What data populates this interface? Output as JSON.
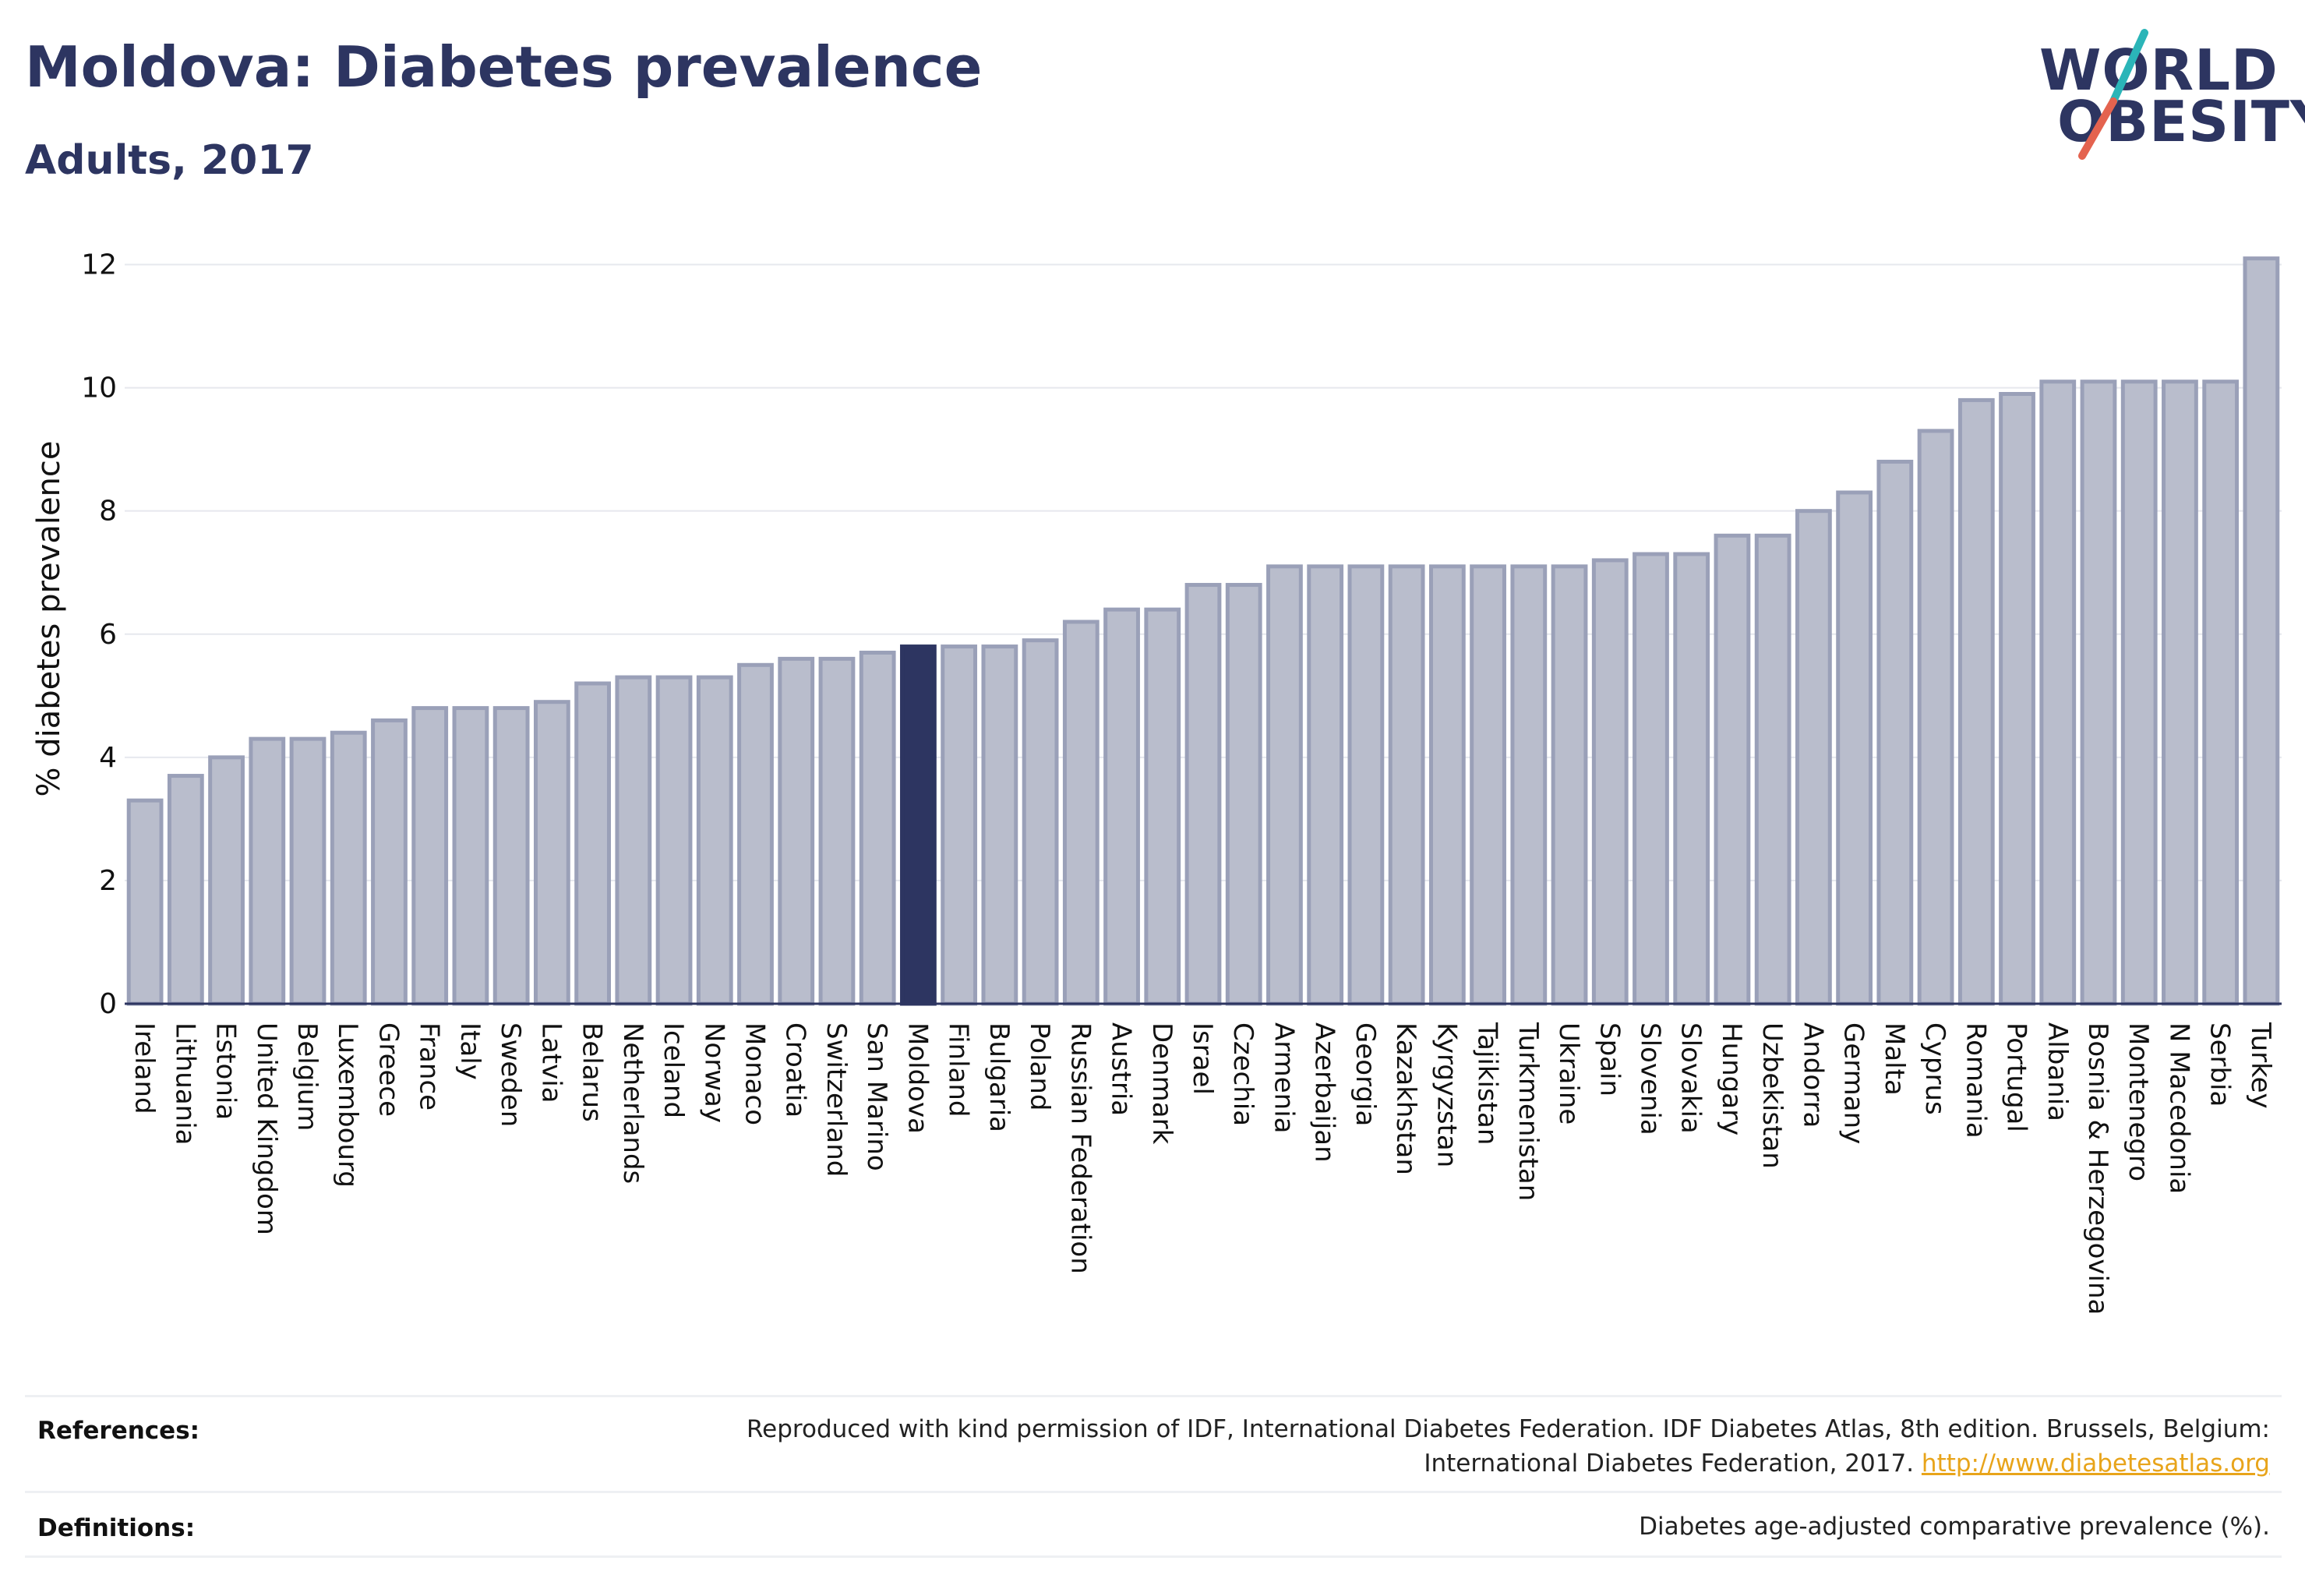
{
  "header": {
    "title": "Moldova: Diabetes prevalence",
    "subtitle": "Adults, 2017"
  },
  "logo": {
    "line1": "WORLD",
    "line2": "OBESITY",
    "colors": {
      "text": "#2d3561",
      "slash_top": "#2bb5b8",
      "slash_bottom": "#e4634f"
    }
  },
  "footer": {
    "references_label": "References:",
    "references_text_1": "Reproduced with kind permission of IDF, International Diabetes Federation. IDF Diabetes Atlas, 8th edition. Brussels, Belgium:",
    "references_text_2": "International Diabetes Federation, 2017.",
    "references_link": "http://www.diabetesatlas.org",
    "definitions_label": "Definitions:",
    "definitions_text": "Diabetes age-adjusted comparative prevalence (%)."
  },
  "chart_data": {
    "type": "bar",
    "ylabel": "% diabetes prevalence",
    "ylim": [
      0,
      12.5
    ],
    "yticks": [
      0,
      2,
      4,
      6,
      8,
      10,
      12
    ],
    "grid": true,
    "highlight": "Moldova",
    "colors": {
      "bar": "#b9bdcc",
      "bar_border": "#9aa0b8",
      "highlight": "#2d3561",
      "grid": "#e6e8ee"
    },
    "categories": [
      "Ireland",
      "Lithuania",
      "Estonia",
      "United Kingdom",
      "Belgium",
      "Luxembourg",
      "Greece",
      "France",
      "Italy",
      "Sweden",
      "Latvia",
      "Belarus",
      "Netherlands",
      "Iceland",
      "Norway",
      "Monaco",
      "Croatia",
      "Switzerland",
      "San Marino",
      "Moldova",
      "Finland",
      "Bulgaria",
      "Poland",
      "Russian Federation",
      "Austria",
      "Denmark",
      "Israel",
      "Czechia",
      "Armenia",
      "Azerbaijan",
      "Georgia",
      "Kazakhstan",
      "Kyrgyzstan",
      "Tajikistan",
      "Turkmenistan",
      "Ukraine",
      "Spain",
      "Slovenia",
      "Slovakia",
      "Hungary",
      "Uzbekistan",
      "Andorra",
      "Germany",
      "Malta",
      "Cyprus",
      "Romania",
      "Portugal",
      "Albania",
      "Bosnia & Herzegovina",
      "Montenegro",
      "N Macedonia",
      "Serbia",
      "Turkey"
    ],
    "values": [
      3.3,
      3.7,
      4.0,
      4.3,
      4.3,
      4.4,
      4.6,
      4.8,
      4.8,
      4.8,
      4.9,
      5.2,
      5.3,
      5.3,
      5.3,
      5.5,
      5.6,
      5.6,
      5.7,
      5.8,
      5.8,
      5.8,
      5.9,
      6.2,
      6.4,
      6.4,
      6.8,
      6.8,
      7.1,
      7.1,
      7.1,
      7.1,
      7.1,
      7.1,
      7.1,
      7.1,
      7.2,
      7.3,
      7.3,
      7.6,
      7.6,
      8.0,
      8.3,
      8.8,
      9.3,
      9.8,
      9.9,
      10.1,
      10.1,
      10.1,
      10.1,
      10.1,
      12.1
    ]
  }
}
